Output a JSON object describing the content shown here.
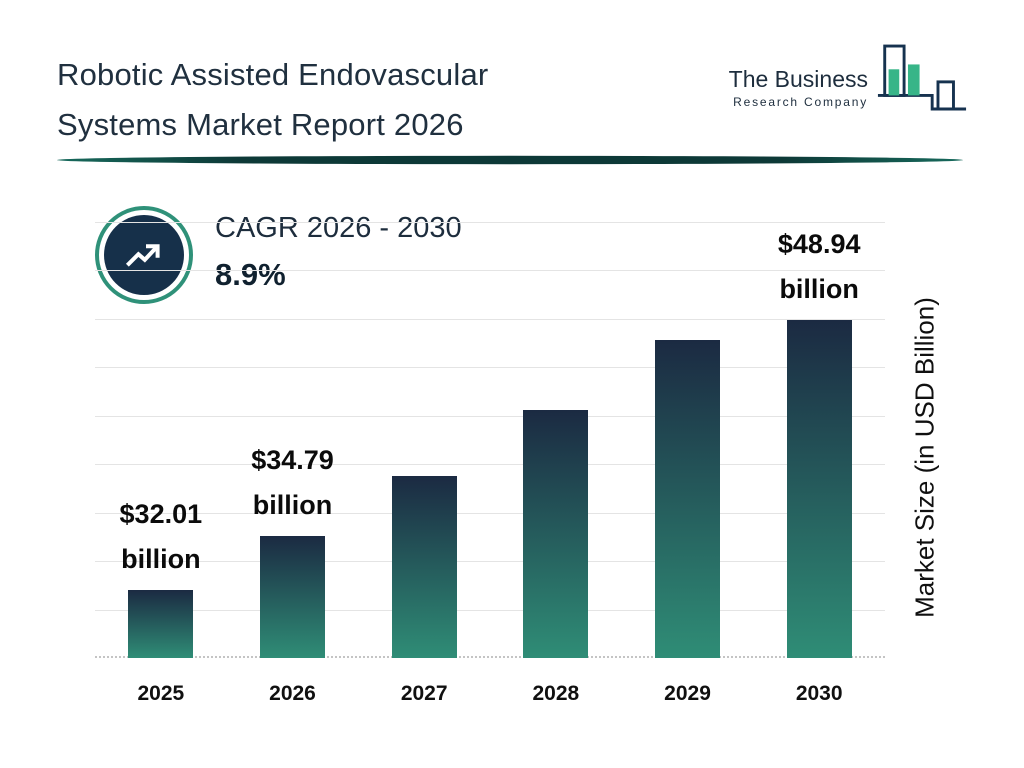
{
  "header": {
    "title_line1": "Robotic Assisted Endovascular",
    "title_line2": "Systems Market Report 2026",
    "logo": {
      "name": "The Business",
      "subname": "Research Company"
    }
  },
  "chart_data": {
    "type": "bar",
    "title": "Robotic Assisted Endovascular Systems Market Report 2026",
    "categories": [
      "2025",
      "2026",
      "2027",
      "2028",
      "2029",
      "2030"
    ],
    "values": [
      32.01,
      34.79,
      37.9,
      41.3,
      44.9,
      48.94
    ],
    "value_labels": [
      {
        "line1": "$32.01",
        "line2": "billion"
      },
      {
        "line1": "$34.79",
        "line2": "billion"
      },
      null,
      null,
      null,
      {
        "line1": "$48.94",
        "line2": "billion"
      }
    ],
    "xlabel": "",
    "ylabel": "Market Size (in USD Billion)",
    "ylim": [
      28.5,
      51
    ],
    "grid": true,
    "annotations": {
      "cagr_label": "CAGR 2026 - 2030",
      "cagr_value": "8.9%"
    }
  },
  "colors": {
    "bar_gradient_top": "#1b2a42",
    "bar_gradient_bottom": "#2f8d76",
    "accent_teal": "#2f9179",
    "dark_navy": "#16304a",
    "divider_teal": "#0d3937",
    "logo_green": "#37b588",
    "grid_line": "#e4e4e4"
  }
}
